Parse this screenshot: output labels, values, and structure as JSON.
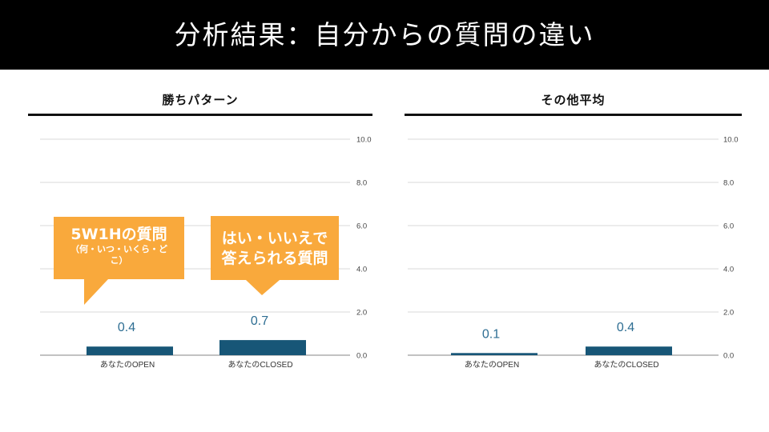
{
  "header": {
    "title": "分析結果：自分からの質問の違い"
  },
  "colors": {
    "bar": "#175677",
    "value_label": "#2E6E93",
    "grid": "#d9d9d9",
    "axis": "#9e9e9e",
    "callout": "#F9A93C"
  },
  "callouts": [
    {
      "line1": "5W1Hの質問",
      "line2": "（何・いつ・いくら・どこ）"
    },
    {
      "line1": "はい・いいえで",
      "line2": "答えられる質問"
    }
  ],
  "chart_data": [
    {
      "type": "bar",
      "title": "勝ちパターン",
      "categories": [
        "あなたのOPEN",
        "あなたのCLOSED"
      ],
      "values": [
        0.4,
        0.7
      ],
      "value_labels": [
        "0.4",
        "0.7"
      ],
      "ylim": [
        0,
        10
      ],
      "yticks": [
        "0.0",
        "2.0",
        "4.0",
        "6.0",
        "8.0",
        "10.0"
      ],
      "y_axis_position": "right",
      "grid": true
    },
    {
      "type": "bar",
      "title": "その他平均",
      "categories": [
        "あなたのOPEN",
        "あなたのCLOSED"
      ],
      "values": [
        0.1,
        0.4
      ],
      "value_labels": [
        "0.1",
        "0.4"
      ],
      "ylim": [
        0,
        10
      ],
      "yticks": [
        "0.0",
        "2.0",
        "4.0",
        "6.0",
        "8.0",
        "10.0"
      ],
      "y_axis_position": "right",
      "grid": true
    }
  ]
}
